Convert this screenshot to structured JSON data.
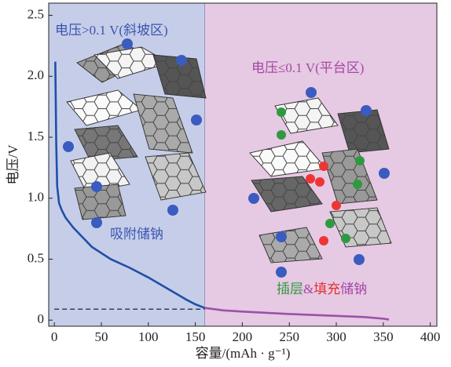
{
  "chart_data": {
    "type": "line",
    "xlabel": "容量/(mAh · g⁻¹)",
    "ylabel": "电压/V",
    "xlim": [
      -6,
      407
    ],
    "ylim": [
      -0.05,
      2.6
    ],
    "xticks": [
      0,
      50,
      100,
      150,
      200,
      250,
      300,
      350,
      400
    ],
    "yticks": [
      0,
      {
        "value": 0.5,
        "label": "0.5"
      },
      {
        "value": 1,
        "label": "1.0"
      },
      {
        "value": 1.5,
        "label": "1.5"
      },
      {
        "value": 2,
        "label": "2.0"
      },
      {
        "value": 2.5,
        "label": "2.5"
      }
    ],
    "divider_x": 160,
    "regions": [
      {
        "label": "电压>0.1 V(斜坡区)",
        "color": "#c6cde8",
        "label_color": "#3a55b0"
      },
      {
        "label": "电压≤0.1 V(平台区)",
        "color": "#e6c9e3",
        "label_color": "#a548a5"
      }
    ],
    "reference_line": {
      "y": 0.09,
      "x": [
        0,
        160
      ]
    },
    "annotations": [
      {
        "parts": [
          {
            "text": "吸附储钠",
            "color": "#3a55b0"
          }
        ]
      },
      {
        "parts": [
          {
            "text": "插层",
            "color": "#2e9a40"
          },
          {
            "text": "&",
            "color": "#a548a5"
          },
          {
            "text": "填充",
            "color": "#e53030"
          },
          {
            "text": "储钠",
            "color": "#a548a5"
          }
        ]
      }
    ],
    "series": [
      {
        "color": "#1f4fa8",
        "x": [
          1,
          1.5,
          2,
          3,
          5,
          8,
          12,
          20,
          30,
          40,
          60,
          80,
          100,
          120,
          140,
          150,
          160
        ],
        "values": [
          2.12,
          1.8,
          1.45,
          1.1,
          0.96,
          0.9,
          0.84,
          0.76,
          0.68,
          0.6,
          0.5,
          0.43,
          0.35,
          0.26,
          0.17,
          0.13,
          0.1
        ]
      },
      {
        "color": "#9a52a8",
        "x": [
          160,
          180,
          200,
          250,
          300,
          330,
          350,
          356
        ],
        "values": [
          0.1,
          0.08,
          0.07,
          0.05,
          0.035,
          0.025,
          0.012,
          0.005
        ]
      }
    ]
  }
}
